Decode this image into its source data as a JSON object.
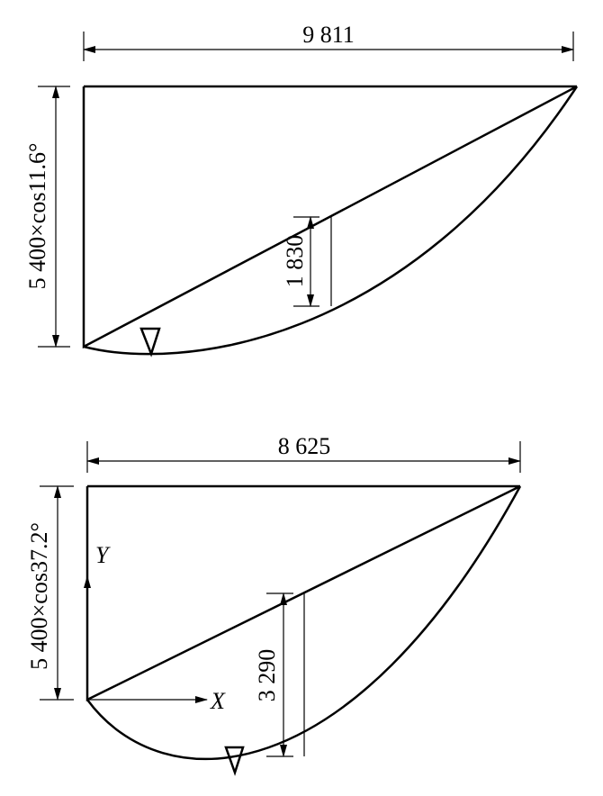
{
  "diagrams": [
    {
      "width": "9 811",
      "height": "5 400×cos11.6°",
      "sag": "1 830"
    },
    {
      "width": "8 625",
      "height": "5 400×cos37.2°",
      "sag": "3 290",
      "axis_y": "Y",
      "axis_x": "X"
    }
  ]
}
